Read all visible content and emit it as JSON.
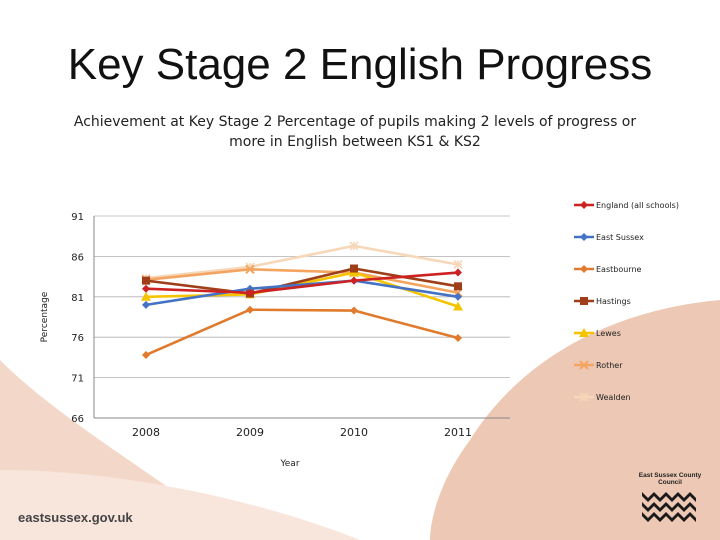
{
  "slide": {
    "title": "Key Stage 2 English Progress",
    "footer_site": "eastsussex.gov.uk",
    "council_name": "East Sussex County Council"
  },
  "chart_data": {
    "type": "line",
    "title": "Achievement at Key Stage 2 Percentage of pupils making 2 levels of progress or more in English between KS1 & KS2",
    "xlabel": "Year",
    "ylabel": "Percentage",
    "categories": [
      "2008",
      "2009",
      "2010",
      "2011"
    ],
    "yticks": [
      66,
      71,
      76,
      81,
      86,
      91
    ],
    "ylim": [
      66,
      91
    ],
    "grid": "horizontal",
    "legend": "right",
    "series": [
      {
        "name": "England (all schools)",
        "color": "#cc2222",
        "marker": "diamond",
        "values": [
          82,
          81.5,
          83,
          84
        ]
      },
      {
        "name": "East Sussex",
        "color": "#4472c4",
        "marker": "diamond",
        "values": [
          80,
          82,
          83,
          81
        ]
      },
      {
        "name": "Eastbourne",
        "color": "#e07a2c",
        "marker": "diamond",
        "values": [
          73.8,
          79.4,
          79.3,
          75.9
        ]
      },
      {
        "name": "Hastings",
        "color": "#9e3f1a",
        "marker": "square",
        "values": [
          83,
          81.4,
          84.5,
          82.3
        ]
      },
      {
        "name": "Lewes",
        "color": "#f5c400",
        "marker": "triangle",
        "values": [
          81,
          81.3,
          84,
          79.8
        ]
      },
      {
        "name": "Rother",
        "color": "#f4a460",
        "marker": "x",
        "values": [
          83.1,
          84.4,
          84,
          81.5
        ]
      },
      {
        "name": "Wealden",
        "color": "#f6d7b8",
        "marker": "star",
        "values": [
          83.3,
          84.7,
          87.3,
          85
        ]
      }
    ]
  }
}
